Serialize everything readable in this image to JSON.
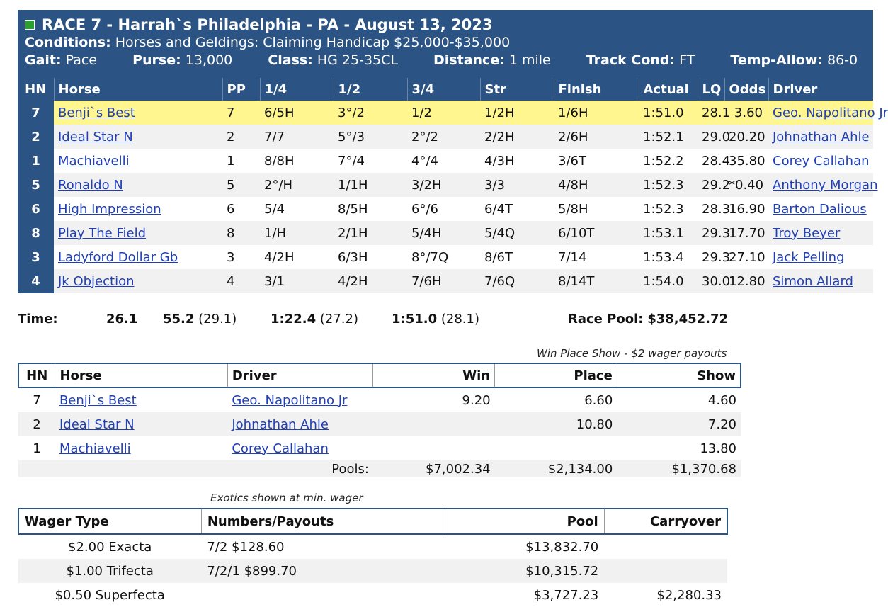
{
  "race": {
    "title": "RACE 7 - Harrah`s Philadelphia - PA - August 13, 2023",
    "conditions_label": "Conditions:",
    "conditions": "Horses and Geldings: Claiming Handicap $25,000-$35,000",
    "gait_label": "Gait:",
    "gait": "Pace",
    "purse_label": "Purse:",
    "purse": "13,000",
    "class_label": "Class:",
    "class": "HG 25-35CL",
    "distance_label": "Distance:",
    "distance": "1 mile",
    "track_label": "Track Cond:",
    "track": "FT",
    "temp_label": "Temp-Allow:",
    "temp": "86-0",
    "indicator_color": "#2ca02c"
  },
  "results": {
    "columns": [
      "HN",
      "Horse",
      "PP",
      "1/4",
      "1/2",
      "3/4",
      "Str",
      "Finish",
      "Actual",
      "LQ",
      "Odds",
      "Driver"
    ],
    "rows": [
      {
        "hn": "7",
        "horse": "Benji`s Best",
        "pp": "7",
        "q1": "6/5H",
        "q2": "3°/2",
        "q3": "1/2",
        "str": "1/2H",
        "finish": "1/6H",
        "actual": "1:51.0",
        "lq": "28.1",
        "odds": "3.60",
        "driver": "Geo. Napolitano Jr"
      },
      {
        "hn": "2",
        "horse": "Ideal Star N",
        "pp": "2",
        "q1": "7/7",
        "q2": "5°/3",
        "q3": "2°/2",
        "str": "2/2H",
        "finish": "2/6H",
        "actual": "1:52.1",
        "lq": "29.0",
        "odds": "20.20",
        "driver": "Johnathan Ahle"
      },
      {
        "hn": "1",
        "horse": "Machiavelli",
        "pp": "1",
        "q1": "8/8H",
        "q2": "7°/4",
        "q3": "4°/4",
        "str": "4/3H",
        "finish": "3/6T",
        "actual": "1:52.2",
        "lq": "28.4",
        "odds": "35.80",
        "driver": "Corey Callahan"
      },
      {
        "hn": "5",
        "horse": "Ronaldo N",
        "pp": "5",
        "q1": "2°/H",
        "q2": "1/1H",
        "q3": "3/2H",
        "str": "3/3",
        "finish": "4/8H",
        "actual": "1:52.3",
        "lq": "29.2",
        "odds": "*0.40",
        "driver": "Anthony Morgan"
      },
      {
        "hn": "6",
        "horse": "High Impression",
        "pp": "6",
        "q1": "5/4",
        "q2": "8/5H",
        "q3": "6°/6",
        "str": "6/4T",
        "finish": "5/8H",
        "actual": "1:52.3",
        "lq": "28.3",
        "odds": "16.90",
        "driver": "Barton Dalious"
      },
      {
        "hn": "8",
        "horse": "Play The Field",
        "pp": "8",
        "q1": "1/H",
        "q2": "2/1H",
        "q3": "5/4H",
        "str": "5/4Q",
        "finish": "6/10T",
        "actual": "1:53.1",
        "lq": "29.3",
        "odds": "17.70",
        "driver": "Troy Beyer"
      },
      {
        "hn": "3",
        "horse": "Ladyford Dollar Gb",
        "pp": "3",
        "q1": "4/2H",
        "q2": "6/3H",
        "q3": "8°/7Q",
        "str": "8/6T",
        "finish": "7/14",
        "actual": "1:53.4",
        "lq": "29.3",
        "odds": "27.10",
        "driver": "Jack Pelling"
      },
      {
        "hn": "4",
        "horse": "Jk Objection",
        "pp": "4",
        "q1": "3/1",
        "q2": "4/2H",
        "q3": "7/6H",
        "str": "7/6Q",
        "finish": "8/14T",
        "actual": "1:54.0",
        "lq": "30.0",
        "odds": "12.80",
        "driver": "Simon Allard"
      }
    ],
    "highlight_color": "#fff68f"
  },
  "times": {
    "label": "Time:",
    "q1": "26.1",
    "q2": "55.2",
    "q2_split": "(29.1)",
    "q3": "1:22.4",
    "q3_split": "(27.2)",
    "final": "1:51.0",
    "final_split": "(28.1)",
    "pool_label": "Race Pool:",
    "pool": "$38,452.72"
  },
  "wps": {
    "caption": "Win Place Show - $2 wager payouts",
    "columns": [
      "HN",
      "Horse",
      "Driver",
      "Win",
      "Place",
      "Show"
    ],
    "rows": [
      {
        "hn": "7",
        "horse": "Benji`s Best",
        "driver": "Geo. Napolitano Jr",
        "win": "9.20",
        "place": "6.60",
        "show": "4.60"
      },
      {
        "hn": "2",
        "horse": "Ideal Star N",
        "driver": "Johnathan Ahle",
        "win": "",
        "place": "10.80",
        "show": "7.20"
      },
      {
        "hn": "1",
        "horse": "Machiavelli",
        "driver": "Corey Callahan",
        "win": "",
        "place": "",
        "show": "13.80"
      }
    ],
    "pools_label": "Pools:",
    "pools_win": "$7,002.34",
    "pools_place": "$2,134.00",
    "pools_show": "$1,370.68"
  },
  "exotics": {
    "caption": "Exotics shown at min. wager",
    "columns": [
      "Wager Type",
      "Numbers/Payouts",
      "Pool",
      "Carryover"
    ],
    "rows": [
      {
        "type": "$2.00 Exacta",
        "numbers": "7/2 $128.60",
        "pool": "$13,832.70",
        "carryover": ""
      },
      {
        "type": "$1.00 Trifecta",
        "numbers": "7/2/1 $899.70",
        "pool": "$10,315.72",
        "carryover": ""
      },
      {
        "type": "$0.50 Superfecta",
        "numbers": "",
        "pool": "$3,727.23",
        "carryover": "$2,280.33"
      }
    ]
  }
}
